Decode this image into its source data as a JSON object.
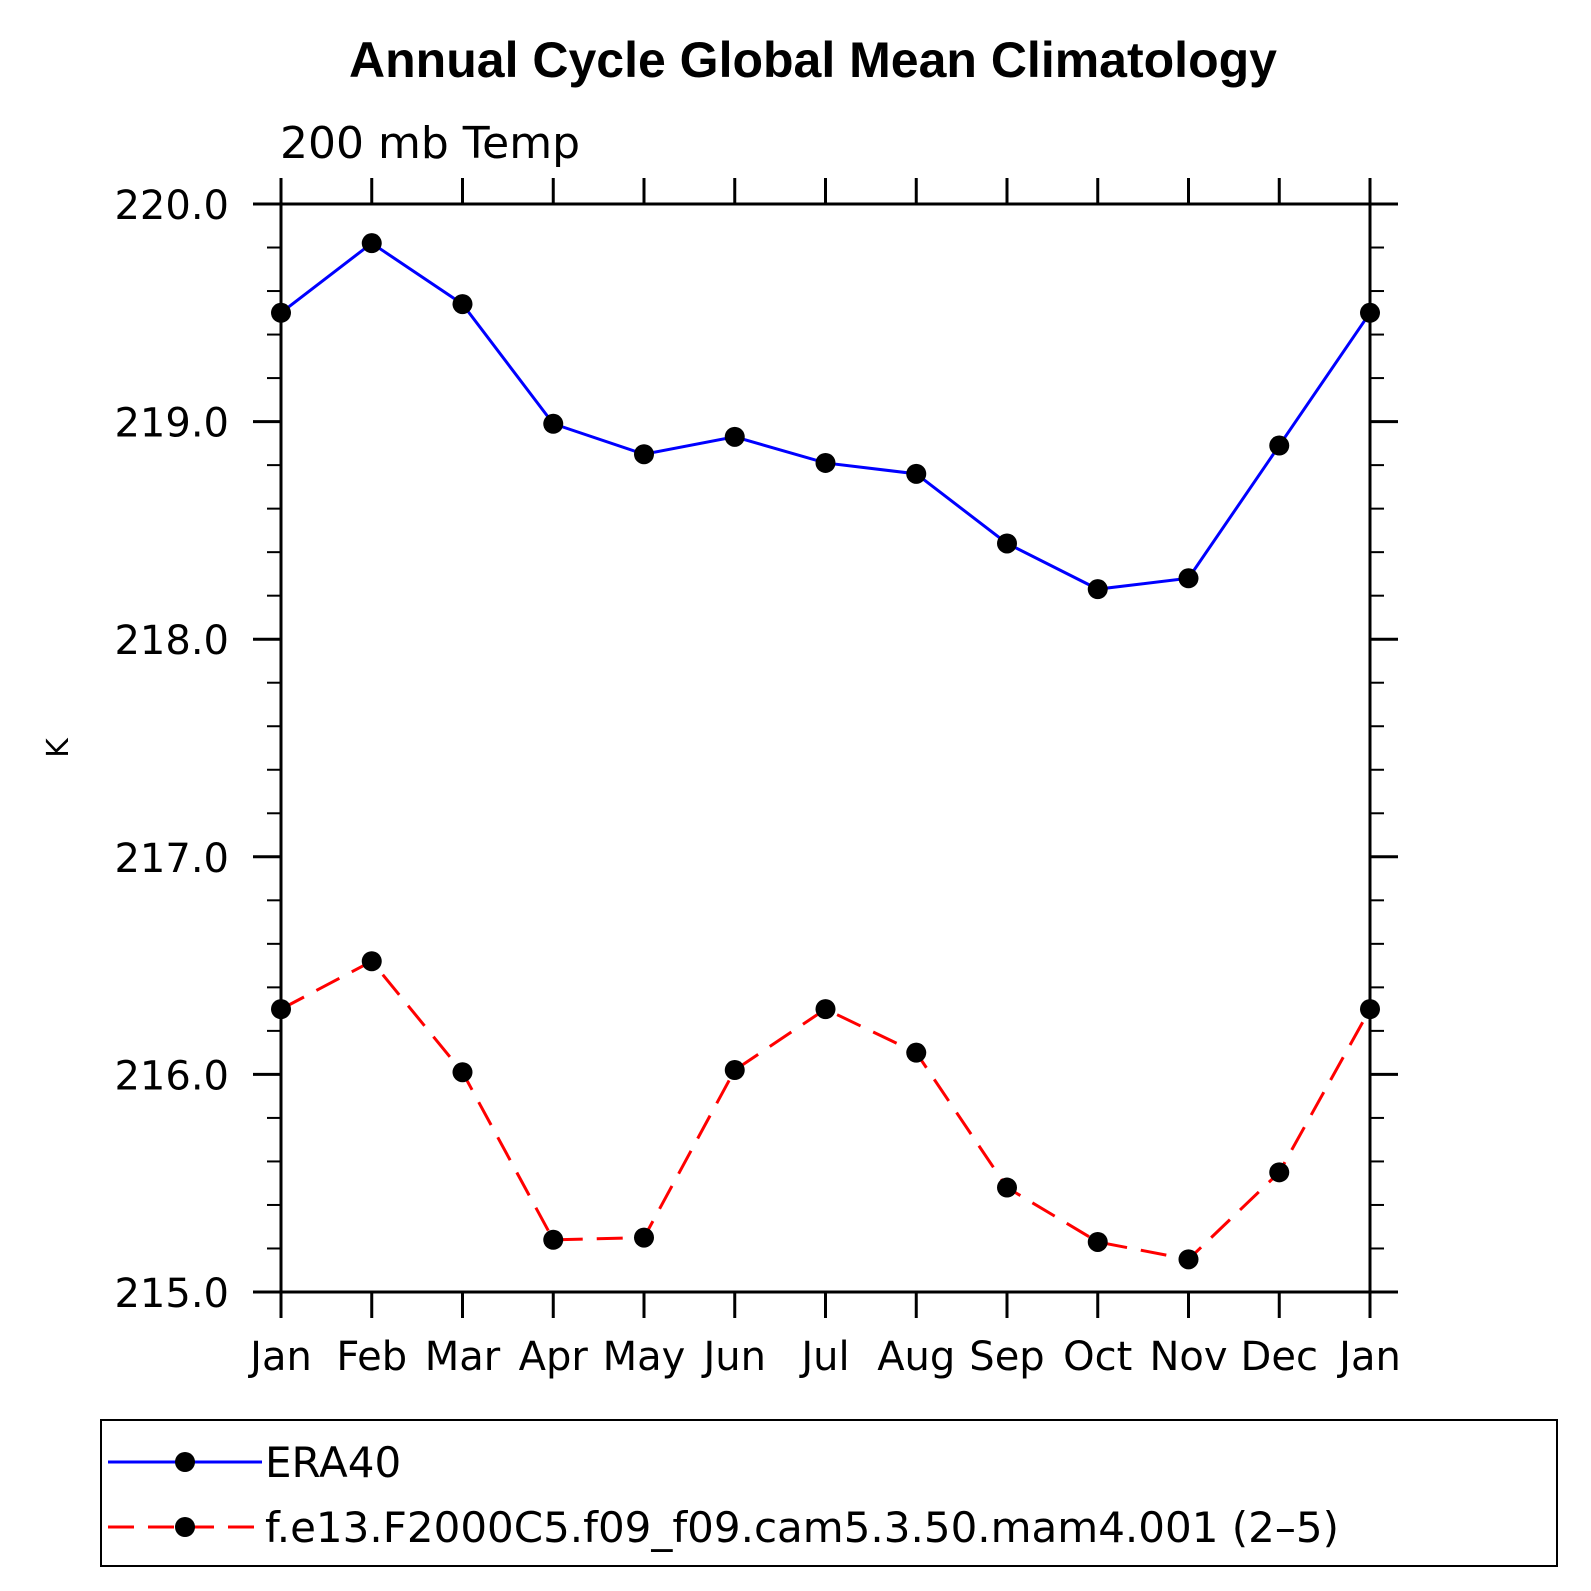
{
  "chart_data": {
    "type": "line",
    "title": "Annual Cycle Global Mean Climatology",
    "subtitle": "200 mb Temp",
    "xlabel": "",
    "ylabel": "K",
    "categories": [
      "Jan",
      "Feb",
      "Mar",
      "Apr",
      "May",
      "Jun",
      "Jul",
      "Aug",
      "Sep",
      "Oct",
      "Nov",
      "Dec",
      "Jan"
    ],
    "ylim": [
      215.0,
      220.0
    ],
    "yticks": [
      "215.0",
      "216.0",
      "217.0",
      "218.0",
      "219.0",
      "220.0"
    ],
    "grid": false,
    "legend_position": "bottom",
    "series": [
      {
        "name": "ERA40",
        "color": "#0000ff",
        "line_style": "solid",
        "marker": "filled-circle",
        "values": [
          219.5,
          219.82,
          219.54,
          218.99,
          218.85,
          218.93,
          218.81,
          218.76,
          218.44,
          218.23,
          218.28,
          218.89,
          219.5
        ]
      },
      {
        "name": "f.e13.F2000C5.f09_f09.cam5.3.50.mam4.001 (2–5)",
        "color": "#ff0000",
        "line_style": "dashed",
        "marker": "filled-circle",
        "values": [
          216.3,
          216.52,
          216.01,
          215.24,
          215.25,
          216.02,
          216.3,
          216.1,
          215.48,
          215.23,
          215.15,
          215.55,
          216.3
        ]
      }
    ]
  }
}
